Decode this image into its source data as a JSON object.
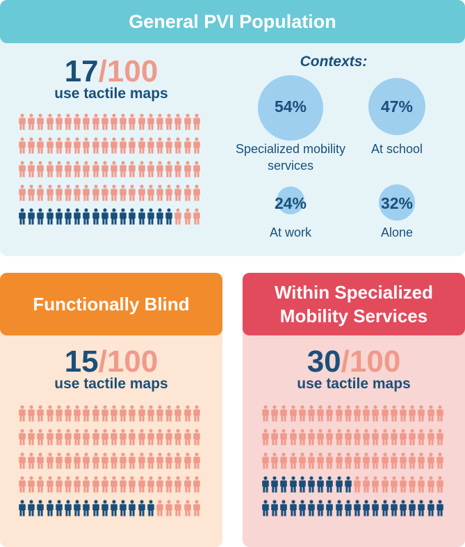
{
  "colors": {
    "filled": "#1a4f7a",
    "empty": "#f09a8c",
    "general_header": "#6ac9d6",
    "blind_header": "#f28b2c",
    "sms_header": "#e24b5c"
  },
  "icon": "person-icon",
  "panels": {
    "general": {
      "title": "General PVI Population",
      "numerator": "17",
      "slash": "/",
      "denominator": "100",
      "caption": "use tactile maps",
      "count": 17,
      "total": 100
    },
    "blind": {
      "title": "Functionally Blind",
      "numerator": "15",
      "slash": "/",
      "denominator": "100",
      "caption": "use tactile maps",
      "count": 15,
      "total": 100
    },
    "sms": {
      "title_line1": "Within Specialized",
      "title_line2": "Mobility Services",
      "numerator": "30",
      "slash": "/",
      "denominator": "100",
      "caption": "use tactile maps",
      "count": 30,
      "total": 100
    }
  },
  "contexts": {
    "title": "Contexts:",
    "items": [
      {
        "value": "54%",
        "pct": 54,
        "label_line1": "Specialized mobility",
        "label_line2": "services"
      },
      {
        "value": "47%",
        "pct": 47,
        "label_line1": "At school",
        "label_line2": ""
      },
      {
        "value": "24%",
        "pct": 24,
        "label_line1": "At work",
        "label_line2": ""
      },
      {
        "value": "32%",
        "pct": 32,
        "label_line1": "Alone",
        "label_line2": ""
      }
    ]
  }
}
